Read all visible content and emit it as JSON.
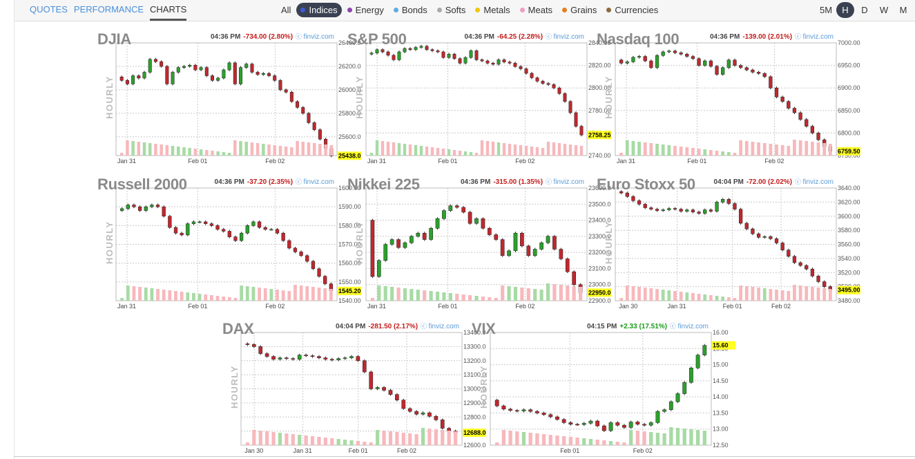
{
  "tabs": [
    "QUOTES",
    "PERFORMANCE",
    "CHARTS"
  ],
  "active_tab": "CHARTS",
  "categories": [
    {
      "label": "All",
      "color": ""
    },
    {
      "label": "Indices",
      "color": "#3b5bdb",
      "active": true
    },
    {
      "label": "Energy",
      "color": "#8e44ad"
    },
    {
      "label": "Bonds",
      "color": "#5dade2"
    },
    {
      "label": "Softs",
      "color": "#aaaaaa"
    },
    {
      "label": "Metals",
      "color": "#f1c40f"
    },
    {
      "label": "Meats",
      "color": "#f19ec2"
    },
    {
      "label": "Grains",
      "color": "#e67e22"
    },
    {
      "label": "Currencies",
      "color": "#8b6a3e"
    }
  ],
  "timeframes": [
    "5M",
    "H",
    "D",
    "W",
    "M"
  ],
  "active_timeframe": "H",
  "colors": {
    "up": "#2ca02c",
    "down": "#c0282e",
    "vol_up": "#a7dba4",
    "vol_down": "#f7b8bc",
    "price_tag": "#ffff22"
  },
  "side_label": "HOURLY",
  "source_label": "finviz.com",
  "charts": [
    {
      "title": "DJIA",
      "time": "04:36 PM",
      "change": "-734.00 (2.80%)",
      "dir": "down",
      "last": "25438.0",
      "yticks": [
        "26400.0",
        "26200.0",
        "26000.0",
        "25800.0",
        "25600.0"
      ],
      "ymin": 25440,
      "ymax": 26400,
      "xticks": [
        "Jan 31",
        "Feb 01",
        "Feb 02"
      ],
      "path": [
        26110,
        26080,
        26050,
        26120,
        26100,
        26150,
        26260,
        26240,
        26200,
        26050,
        26150,
        26190,
        26200,
        26210,
        26170,
        26190,
        26120,
        26080,
        26100,
        26170,
        26230,
        26050,
        26190,
        26220,
        26150,
        26130,
        26140,
        26120,
        26080,
        26000,
        25980,
        25900,
        25850,
        25800,
        25720,
        25660,
        25580,
        25500,
        25438
      ]
    },
    {
      "title": "S&P 500",
      "time": "04:36 PM",
      "change": "-64.25 (2.28%)",
      "dir": "down",
      "last": "2758.25",
      "yticks": [
        "2840.00",
        "2820.00",
        "2800.00",
        "2780.00",
        "2760.00",
        "2740.00"
      ],
      "ymin": 2740,
      "ymax": 2840,
      "xticks": [
        "Jan 31",
        "Feb 01",
        "Feb 02"
      ],
      "path": [
        2830,
        2831,
        2834,
        2832,
        2829,
        2825,
        2832,
        2835,
        2834,
        2836,
        2837,
        2834,
        2833,
        2832,
        2827,
        2830,
        2826,
        2822,
        2827,
        2833,
        2825,
        2824,
        2822,
        2821,
        2825,
        2823,
        2822,
        2819,
        2817,
        2813,
        2809,
        2806,
        2804,
        2803,
        2800,
        2795,
        2788,
        2778,
        2766,
        2758.25
      ]
    },
    {
      "title": "Nasdaq 100",
      "time": "04:36 PM",
      "change": "-139.00 (2.01%)",
      "dir": "down",
      "last": "6759.50",
      "yticks": [
        "7000.00",
        "6950.00",
        "6900.00",
        "6850.00",
        "6800.00",
        "6750.00"
      ],
      "ymin": 6750,
      "ymax": 7000,
      "xticks": [
        "Jan 31",
        "Feb 01",
        "Feb 02"
      ],
      "path": [
        6962,
        6955,
        6958,
        6968,
        6970,
        6960,
        6945,
        6972,
        6980,
        6982,
        6978,
        6975,
        6970,
        6965,
        6950,
        6960,
        6948,
        6930,
        6945,
        6962,
        6950,
        6945,
        6940,
        6935,
        6932,
        6925,
        6900,
        6880,
        6870,
        6855,
        6845,
        6830,
        6815,
        6800,
        6785,
        6770,
        6759.5
      ]
    },
    {
      "title": "Russell 2000",
      "time": "04:36 PM",
      "change": "-37.20 (2.35%)",
      "dir": "down",
      "last": "1545.20",
      "yticks": [
        "1600.00",
        "1590.00",
        "1580.00",
        "1570.00",
        "1560.00",
        "1550.00",
        "1540.00"
      ],
      "ymin": 1540,
      "ymax": 1600,
      "xticks": [
        "Jan 31",
        "Feb 01",
        "Feb 02"
      ],
      "path": [
        1588,
        1589,
        1591,
        1590,
        1588,
        1590,
        1591,
        1590,
        1585,
        1579,
        1576,
        1575,
        1581,
        1582,
        1582,
        1581,
        1580,
        1578,
        1577,
        1574,
        1572,
        1576,
        1580,
        1582,
        1579,
        1578,
        1578,
        1576,
        1572,
        1568,
        1566,
        1564,
        1561,
        1557,
        1553,
        1549,
        1545.2
      ]
    },
    {
      "title": "Nikkei 225",
      "time": "04:36 PM",
      "change": "-315.00 (1.35%)",
      "dir": "down",
      "last": "22950.0",
      "yticks": [
        "23600.0",
        "23500.0",
        "23400.0",
        "23300.0",
        "23200.0",
        "23100.0",
        "23000.0",
        "22900.0"
      ],
      "ymin": 22900,
      "ymax": 23600,
      "xticks": [
        "Jan 31",
        "Feb 01",
        "Feb 02"
      ],
      "path": [
        23400,
        23050,
        23150,
        23250,
        23280,
        23230,
        23260,
        23300,
        23320,
        23280,
        23350,
        23410,
        23460,
        23490,
        23480,
        23450,
        23380,
        23410,
        23350,
        23310,
        23280,
        23180,
        23210,
        23320,
        23240,
        23180,
        23220,
        23260,
        23300,
        23220,
        23160,
        23080,
        23000,
        22950
      ]
    },
    {
      "title": "Euro Stoxx 50",
      "time": "04:04 PM",
      "change": "-72.00 (2.02%)",
      "dir": "down",
      "last": "3495.00",
      "yticks": [
        "3640.00",
        "3620.00",
        "3600.00",
        "3580.00",
        "3560.00",
        "3540.00",
        "3520.00",
        "3500.00",
        "3480.00"
      ],
      "ymin": 3480,
      "ymax": 3640,
      "xticks": [
        "Jan 30",
        "Jan 31",
        "Feb 01",
        "Feb 02"
      ],
      "path": [
        3635,
        3633,
        3628,
        3622,
        3617,
        3612,
        3610,
        3608,
        3609,
        3611,
        3610,
        3607,
        3609,
        3606,
        3604,
        3609,
        3607,
        3620,
        3624,
        3618,
        3610,
        3590,
        3582,
        3575,
        3570,
        3571,
        3568,
        3562,
        3552,
        3543,
        3534,
        3530,
        3525,
        3515,
        3507,
        3500,
        3495
      ]
    },
    {
      "title": "DAX",
      "time": "04:04 PM",
      "change": "-281.50 (2.17%)",
      "dir": "down",
      "last": "12688.0",
      "yticks": [
        "13400.0",
        "13300.0",
        "13200.0",
        "13100.0",
        "13000.0",
        "12900.0",
        "12800.0",
        "12700.0",
        "12600.0"
      ],
      "ymin": 12600,
      "ymax": 13400,
      "xticks": [
        "Jan 30",
        "Jan 31",
        "Feb 01",
        "Feb 02"
      ],
      "path": [
        13320,
        13315,
        13300,
        13250,
        13230,
        13210,
        13220,
        13215,
        13210,
        13240,
        13235,
        13230,
        13220,
        13210,
        13205,
        13215,
        13220,
        13230,
        13200,
        13120,
        13000,
        13010,
        12990,
        12960,
        12920,
        12860,
        12840,
        12820,
        12830,
        12805,
        12780,
        12720,
        12700,
        12688
      ]
    },
    {
      "title": "VIX",
      "time": "04:15 PM",
      "change": "+2.33 (17.51%)",
      "dir": "up",
      "last": "15.60",
      "yticks": [
        "16.00",
        "15.50",
        "15.00",
        "14.50",
        "14.00",
        "13.50",
        "13.00",
        "12.50"
      ],
      "ymin": 12.5,
      "ymax": 16.0,
      "xticks": [
        "Feb 01",
        "Feb 02"
      ],
      "path": [
        13.9,
        13.72,
        13.62,
        13.58,
        13.56,
        13.6,
        13.55,
        13.5,
        13.45,
        13.38,
        13.3,
        13.2,
        13.15,
        13.14,
        13.18,
        13.25,
        13.1,
        12.95,
        13.2,
        13.12,
        13.05,
        13.22,
        13.15,
        13.12,
        13.2,
        13.55,
        13.6,
        13.85,
        14.1,
        14.45,
        14.9,
        15.3,
        15.6
      ]
    }
  ]
}
